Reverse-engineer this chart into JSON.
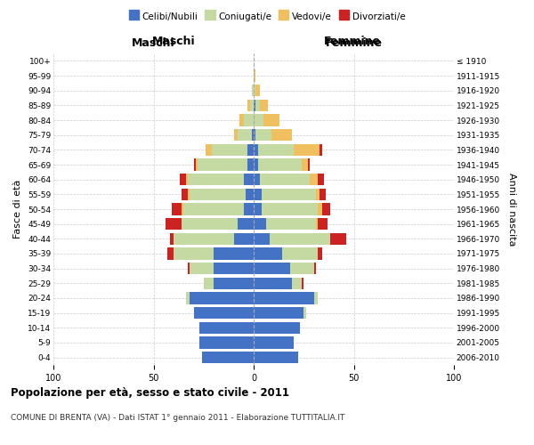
{
  "age_groups": [
    "0-4",
    "5-9",
    "10-14",
    "15-19",
    "20-24",
    "25-29",
    "30-34",
    "35-39",
    "40-44",
    "45-49",
    "50-54",
    "55-59",
    "60-64",
    "65-69",
    "70-74",
    "75-79",
    "80-84",
    "85-89",
    "90-94",
    "95-99",
    "100+"
  ],
  "birth_years": [
    "2006-2010",
    "2001-2005",
    "1996-2000",
    "1991-1995",
    "1986-1990",
    "1981-1985",
    "1976-1980",
    "1971-1975",
    "1966-1970",
    "1961-1965",
    "1956-1960",
    "1951-1955",
    "1946-1950",
    "1941-1945",
    "1936-1940",
    "1931-1935",
    "1926-1930",
    "1921-1925",
    "1916-1920",
    "1911-1915",
    "≤ 1910"
  ],
  "male_celibi": [
    26,
    27,
    27,
    30,
    32,
    20,
    20,
    20,
    10,
    8,
    5,
    4,
    5,
    3,
    3,
    1,
    0,
    0,
    0,
    0,
    0
  ],
  "male_coniugati": [
    0,
    0,
    0,
    0,
    2,
    5,
    12,
    20,
    30,
    28,
    30,
    28,
    28,
    25,
    18,
    7,
    5,
    2,
    1,
    0,
    0
  ],
  "male_vedovi": [
    0,
    0,
    0,
    0,
    0,
    0,
    0,
    0,
    0,
    0,
    1,
    1,
    1,
    1,
    3,
    2,
    2,
    1,
    0,
    0,
    0
  ],
  "male_divorziati": [
    0,
    0,
    0,
    0,
    0,
    0,
    1,
    3,
    2,
    8,
    5,
    3,
    3,
    1,
    0,
    0,
    0,
    0,
    0,
    0,
    0
  ],
  "female_celibi": [
    22,
    20,
    23,
    25,
    30,
    19,
    18,
    14,
    8,
    6,
    4,
    4,
    3,
    2,
    2,
    1,
    0,
    1,
    0,
    0,
    0
  ],
  "female_coniugati": [
    0,
    0,
    0,
    1,
    2,
    5,
    12,
    18,
    30,
    25,
    28,
    27,
    25,
    22,
    18,
    8,
    5,
    2,
    1,
    0,
    0
  ],
  "female_vedovi": [
    0,
    0,
    0,
    0,
    0,
    0,
    0,
    0,
    0,
    1,
    2,
    2,
    4,
    3,
    13,
    10,
    8,
    4,
    2,
    1,
    0
  ],
  "female_divorziati": [
    0,
    0,
    0,
    0,
    0,
    1,
    1,
    2,
    8,
    5,
    4,
    3,
    3,
    1,
    1,
    0,
    0,
    0,
    0,
    0,
    0
  ],
  "color_celibi": "#4472c4",
  "color_coniugati": "#c5d9a3",
  "color_vedovi": "#f0c060",
  "color_divorziati": "#cc2222",
  "xlim": 100,
  "title_main": "Popolazione per età, sesso e stato civile - 2011",
  "title_sub": "COMUNE DI BRENTA (VA) - Dati ISTAT 1° gennaio 2011 - Elaborazione TUTTITALIA.IT",
  "ylabel": "Fasce di età",
  "ylabel_right": "Anni di nascita",
  "xlabel_left": "Maschi",
  "xlabel_right": "Femmine",
  "bg_color": "#ffffff",
  "grid_color": "#cccccc"
}
